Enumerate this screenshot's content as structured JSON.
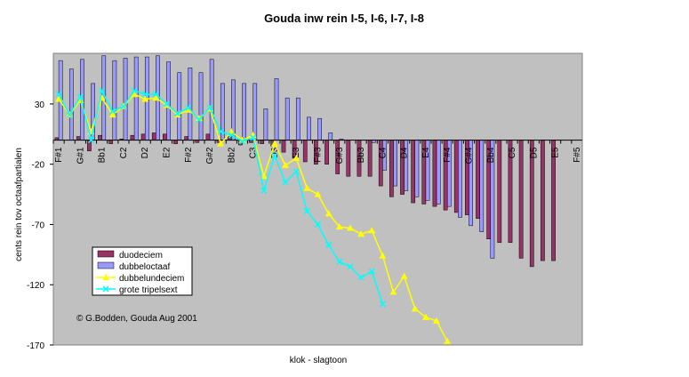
{
  "chart_data": {
    "type": "bar",
    "title": "Gouda inw rein I-5, I-6, I-7, I-8",
    "y_label": "cents rein tov octaafpartialen",
    "x_label": "klok - slagtoon",
    "annotation": "© G.Bodden, Gouda Aug 2001",
    "categories": [
      "F#1",
      null,
      "G#1",
      null,
      "Bb1",
      null,
      "C2",
      null,
      "D2",
      null,
      "E2",
      null,
      "F#2",
      null,
      "G#2",
      null,
      "Bb2",
      null,
      "C3",
      null,
      "D3",
      null,
      "E3",
      null,
      "F#3",
      null,
      "G#3",
      null,
      "Bb3",
      null,
      "C4",
      null,
      "D4",
      null,
      "E4",
      null,
      "F#4",
      null,
      "G#4",
      null,
      "Bb4",
      null,
      "C5",
      null,
      "D5",
      null,
      "E5",
      null,
      "F#5"
    ],
    "ylim": [
      -170,
      72
    ],
    "yticks": [
      -170,
      -120,
      -70,
      -20,
      30
    ],
    "grid": false,
    "series": [
      {
        "name": "duodeciem",
        "type": "bar",
        "color": "#993366",
        "values": [
          2,
          0,
          3,
          -9,
          4,
          -3,
          1,
          4,
          5,
          6,
          5,
          -3,
          3,
          -2,
          5,
          -2,
          3,
          -4,
          -2,
          -3,
          -5,
          -10,
          -15,
          -18,
          -20,
          -20,
          -28,
          -30,
          -30,
          -30,
          -38,
          -47,
          -45,
          -52,
          -53,
          -55,
          -58,
          -60,
          -62,
          -65,
          -82,
          -85,
          -85,
          -98,
          -105,
          -100,
          -100,
          null,
          null
        ]
      },
      {
        "name": "dubbeloctaaf",
        "type": "bar",
        "color": "#9999ff",
        "values": [
          66,
          59,
          67,
          47,
          70,
          66,
          68,
          69,
          69,
          70,
          65,
          56,
          60,
          56,
          67,
          47,
          50,
          47,
          47,
          26,
          51,
          35,
          35,
          19,
          18,
          6,
          1,
          0,
          0,
          -2,
          -25,
          -38,
          -42,
          -47,
          -50,
          -53,
          -55,
          -64,
          -71,
          -76,
          -98,
          null,
          null,
          null,
          null,
          null,
          null,
          null,
          null
        ]
      },
      {
        "name": "dubbelundeciem",
        "type": "line",
        "marker": "triangle",
        "color": "#ffff00",
        "values": [
          34,
          21,
          33,
          7,
          35,
          21,
          28,
          38,
          34,
          35,
          29,
          21,
          25,
          18,
          26,
          -3,
          7,
          0,
          4,
          -30,
          -3,
          -21,
          -15,
          -40,
          -45,
          -61,
          -72,
          -73,
          -78,
          -75,
          -96,
          -126,
          -113,
          -140,
          -147,
          -150,
          -167,
          null,
          null,
          null,
          null,
          null,
          null,
          null,
          null,
          null,
          null,
          null,
          null
        ]
      },
      {
        "name": "grote tripelsext",
        "type": "line",
        "marker": "x",
        "color": "#00ffff",
        "values": [
          38,
          21,
          36,
          0,
          41,
          24,
          28,
          41,
          38,
          38,
          30,
          22,
          27,
          17,
          27,
          7,
          4,
          -1,
          2,
          -42,
          -13,
          -35,
          -26,
          -59,
          -70,
          -87,
          -101,
          -105,
          -114,
          -109,
          -136,
          null,
          null,
          null,
          null,
          null,
          null,
          null,
          null,
          null,
          null,
          null,
          null,
          null,
          null,
          null,
          null,
          null,
          null
        ]
      }
    ]
  }
}
